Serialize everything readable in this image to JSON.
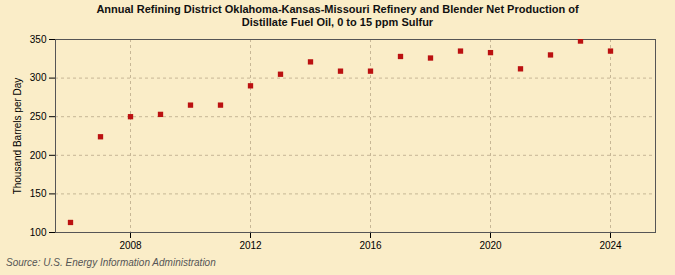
{
  "chart_data": {
    "type": "scatter",
    "title": "Annual Refining District Oklahoma-Kansas-Missouri Refinery and Blender Net Production of\nDistillate Fuel Oil, 0 to 15 ppm Sulfur",
    "ylabel": "Thousand Barrels per Day",
    "annotation": "Source: U.S. Energy Information Administration",
    "x": [
      2006,
      2007,
      2008,
      2009,
      2010,
      2011,
      2012,
      2013,
      2014,
      2015,
      2016,
      2017,
      2018,
      2019,
      2020,
      2021,
      2022,
      2023,
      2024
    ],
    "values": [
      113,
      224,
      250,
      253,
      265,
      265,
      290,
      305,
      321,
      309,
      309,
      328,
      326,
      335,
      333,
      312,
      330,
      348,
      335
    ],
    "color": "#bb1111",
    "marker": "square",
    "xlim": [
      2005.5,
      2025.5
    ],
    "xticks": [
      2008,
      2012,
      2016,
      2020,
      2024
    ],
    "ylim": [
      100,
      350
    ],
    "yticks": [
      100,
      150,
      200,
      250,
      300,
      350
    ],
    "grid": true
  }
}
